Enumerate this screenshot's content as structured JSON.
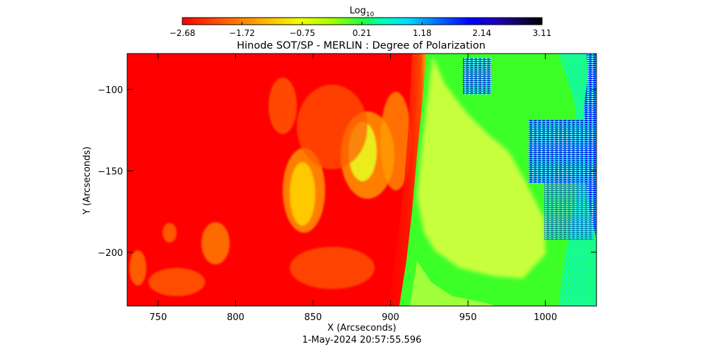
{
  "chart_data": {
    "type": "heatmap",
    "title": "Hinode SOT/SP - MERLIN : Degree of Polarization",
    "xlabel": "X (Arcseconds)",
    "ylabel": "Y (Arcseconds)",
    "footer": "1-May-2024 20:57:55.596",
    "xlim": [
      730,
      1033
    ],
    "ylim": [
      -233,
      -78
    ],
    "xticks": [
      750,
      800,
      850,
      900,
      950,
      1000
    ],
    "xtick_labels": [
      "750",
      "800",
      "850",
      "900",
      "950",
      "1000"
    ],
    "yticks": [
      -100,
      -150,
      -200
    ],
    "ytick_labels": [
      "−100",
      "−150",
      "−200"
    ],
    "colorbar": {
      "label_main": "Log",
      "label_sub": "10",
      "range": [
        -2.68,
        3.11
      ],
      "ticks": [
        -2.68,
        -1.72,
        -0.75,
        0.21,
        1.18,
        2.14,
        3.11
      ],
      "tick_labels": [
        "−2.68",
        "−1.72",
        "−0.75",
        "0.21",
        "1.18",
        "2.14",
        "3.11"
      ]
    },
    "grid": false,
    "colors": {
      "red": "#ff0000",
      "orange": "#ff9a00",
      "yellow": "#f0ff00",
      "yellow_green": "#c8ff3c",
      "green": "#3cff28",
      "cyan": "#00ffd0",
      "blue": "#0028ff",
      "navy": "#0000a0",
      "black": "#000000"
    }
  }
}
